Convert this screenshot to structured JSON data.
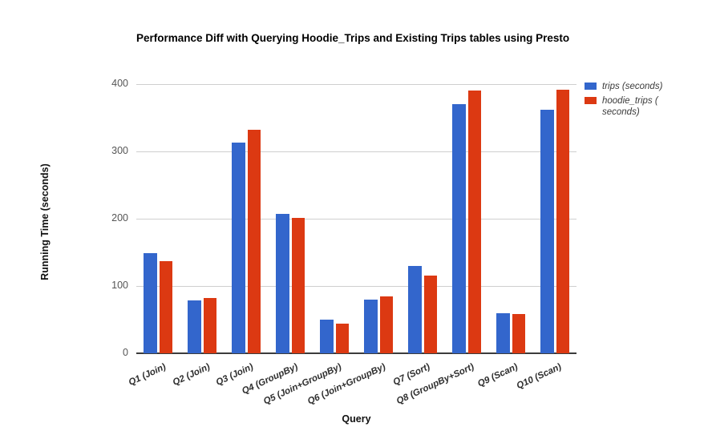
{
  "chart_data": {
    "type": "bar",
    "title": "Performance Diff with Querying Hoodie_Trips and Existing Trips tables using Presto",
    "xlabel": "Query",
    "ylabel": "Running Time (seconds)",
    "ylim": [
      0,
      400
    ],
    "y_ticks": [
      0,
      100,
      200,
      300,
      400
    ],
    "grid": true,
    "legend_position": "right",
    "categories": [
      "Q1 (Join)",
      "Q2 (Join)",
      "Q3 (Join)",
      "Q4 (GroupBy)",
      "Q5 (Join+GroupBy)",
      "Q6 (Join+GroupBy)",
      "Q7 (Sort)",
      "Q8 (GroupBy+Sort)",
      "Q9 (Scan)",
      "Q10 (Scan)"
    ],
    "series": [
      {
        "name": "trips (seconds)",
        "color": "#3366cc",
        "values": [
          149,
          79,
          313,
          207,
          50,
          80,
          130,
          370,
          59,
          362
        ]
      },
      {
        "name": "hoodie_trips ( seconds)",
        "color": "#dc3912",
        "values": [
          137,
          82,
          332,
          201,
          44,
          84,
          115,
          390,
          58,
          392
        ]
      }
    ]
  },
  "legend": {
    "items": [
      {
        "lines": [
          "trips (seconds)"
        ]
      },
      {
        "lines": [
          "hoodie_trips (",
          "seconds)"
        ]
      }
    ]
  }
}
